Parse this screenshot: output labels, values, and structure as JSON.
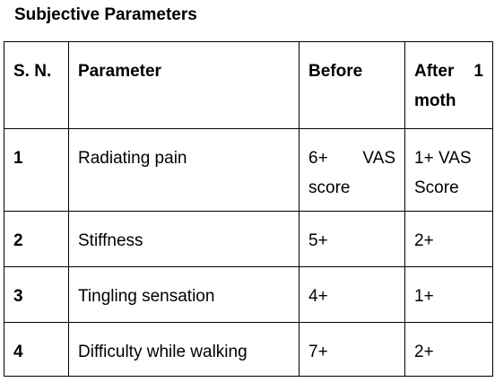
{
  "heading": "Subjective Parameters",
  "table": {
    "headers": {
      "sn": "S. N.",
      "parameter": "Parameter",
      "before": "Before",
      "after_line1_a": "After",
      "after_line1_b": "1",
      "after_line2": "moth"
    },
    "rows": [
      {
        "sn": "1",
        "parameter": "Radiating pain",
        "before_line1_a": "6+",
        "before_line1_b": "VAS",
        "before_line2": "score",
        "after_line1": "1+ VAS",
        "after_line2": "Score"
      },
      {
        "sn": "2",
        "parameter": "Stiffness",
        "before": "5+",
        "after": "2+"
      },
      {
        "sn": "3",
        "parameter": "Tingling sensation",
        "before": "4+",
        "after": "1+"
      },
      {
        "sn": "4",
        "parameter": "Difficulty while walking",
        "before": "7+",
        "after": "2+"
      }
    ]
  }
}
